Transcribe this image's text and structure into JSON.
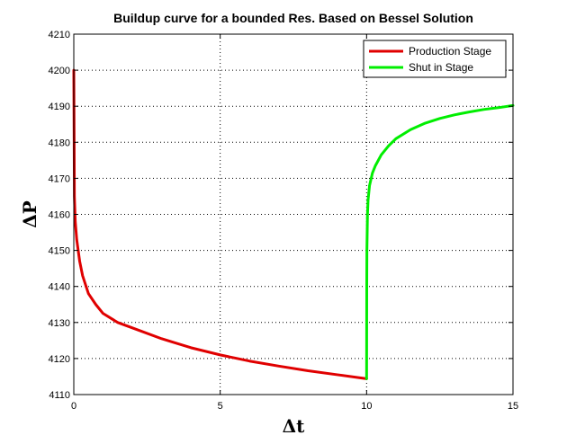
{
  "chart_data": {
    "type": "line",
    "title": "Buildup curve for a bounded Res. Based on Bessel Solution",
    "xlabel": "Δt",
    "ylabel": "ΔP",
    "xlim": [
      0,
      15
    ],
    "ylim": [
      4110,
      4210
    ],
    "x_ticks": [
      "0",
      "5",
      "10",
      "15"
    ],
    "y_ticks": [
      "4110",
      "4120",
      "4130",
      "4140",
      "4150",
      "4160",
      "4170",
      "4180",
      "4190",
      "4200",
      "4210"
    ],
    "grid": true,
    "legend_position": "top-right",
    "series": [
      {
        "name": "Production Stage",
        "color": "#e00000",
        "x": [
          0,
          0.01,
          0.02,
          0.05,
          0.1,
          0.2,
          0.3,
          0.5,
          0.75,
          1,
          1.5,
          2,
          3,
          4,
          5,
          6,
          7,
          8,
          9,
          10
        ],
        "y": [
          4200,
          4183,
          4165,
          4158,
          4153,
          4147,
          4143,
          4138,
          4135,
          4132.5,
          4130,
          4128.5,
          4125.5,
          4123,
          4121,
          4119.3,
          4117.9,
          4116.6,
          4115.5,
          4114.4
        ]
      },
      {
        "name": "Shut in Stage",
        "color": "#00ee00",
        "x": [
          10,
          10.005,
          10.01,
          10.03,
          10.05,
          10.1,
          10.2,
          10.3,
          10.5,
          10.75,
          11,
          11.5,
          12,
          12.5,
          13,
          13.5,
          14,
          14.5,
          15
        ],
        "y": [
          4114.4,
          4140,
          4150,
          4160,
          4164,
          4168,
          4171.5,
          4173.5,
          4176.5,
          4179,
          4181,
          4183.5,
          4185.3,
          4186.6,
          4187.6,
          4188.4,
          4189.1,
          4189.6,
          4190.2
        ]
      }
    ]
  }
}
